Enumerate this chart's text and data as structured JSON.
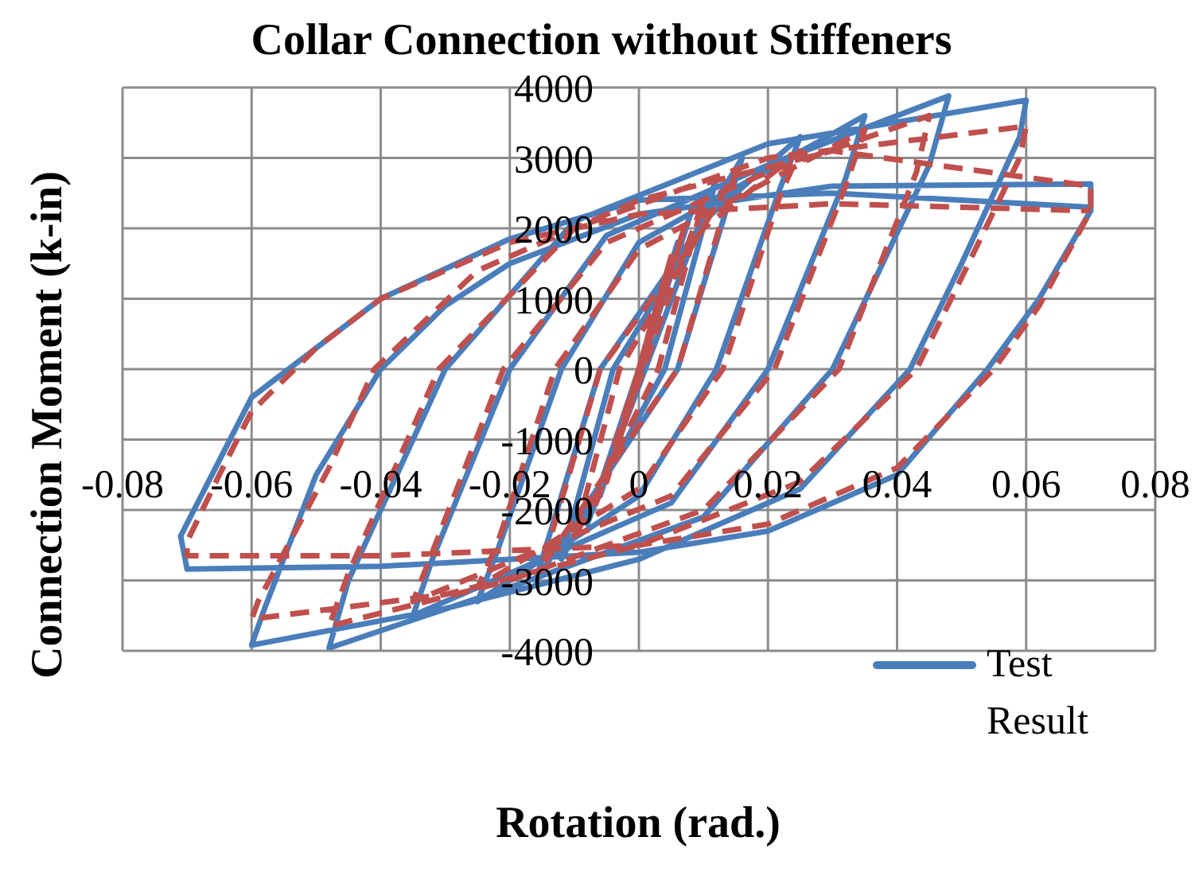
{
  "chart_data": {
    "type": "line",
    "title": "Collar Connection without Stiffeners",
    "xlabel": "Rotation (rad.)",
    "ylabel": "Connection Moment (k-in)",
    "xlim": [
      -0.08,
      0.08
    ],
    "xticks": [
      -0.08,
      -0.06,
      -0.04,
      -0.02,
      0,
      0.02,
      0.04,
      0.06,
      0.08
    ],
    "ylim": [
      -4000,
      4000
    ],
    "yticks": [
      -4000,
      -3000,
      -2000,
      -1000,
      0,
      1000,
      2000,
      3000,
      4000
    ],
    "grid": true,
    "legend": "bottom right",
    "marker": "none",
    "series": [
      {
        "name": "Test Result",
        "color": "#4a7ebb",
        "line_style": "solid",
        "x": [
          0,
          0.004,
          -0.004,
          0.006,
          -0.006,
          0.008,
          -0.008,
          0.012,
          0.004,
          -0.012,
          -0.004,
          0.016,
          0.006,
          -0.016,
          -0.006,
          0.01,
          0.025,
          0.022,
          0.012,
          0,
          -0.025,
          -0.022,
          -0.012,
          0,
          0.035,
          0.032,
          0.02,
          0.005,
          -0.035,
          -0.032,
          -0.02,
          -0.005,
          0.02,
          0.048,
          0.045,
          0.03,
          0.01,
          -0.02,
          -0.048,
          -0.045,
          -0.03,
          -0.01,
          0.02,
          0.06,
          0.059,
          0.05,
          0.042,
          0.025,
          0,
          -0.03,
          -0.06,
          -0.058,
          -0.05,
          -0.04,
          -0.03,
          -0.02,
          0,
          0.03,
          0.07,
          0.07,
          0.062,
          0.054,
          0.04,
          0.02,
          0,
          -0.04,
          -0.07,
          -0.071,
          -0.06,
          -0.04,
          -0.02,
          0,
          0.03,
          0.07
        ],
        "values": [
          0,
          1300,
          -1300,
          1800,
          -1800,
          2200,
          -2200,
          2700,
          0,
          -2700,
          0,
          3000,
          0,
          -3000,
          0,
          2100,
          3300,
          2600,
          0,
          -1800,
          -3300,
          -2600,
          0,
          1800,
          3600,
          2700,
          0,
          -1900,
          -3500,
          -2700,
          0,
          1900,
          2900,
          3880,
          2900,
          0,
          -2100,
          -3100,
          -3960,
          -3000,
          0,
          2100,
          3200,
          3820,
          3300,
          1500,
          0,
          -1700,
          -2700,
          -3400,
          -3920,
          -3400,
          -1500,
          0,
          900,
          1500,
          2200,
          2600,
          2630,
          2250,
          1000,
          0,
          -1500,
          -2300,
          -2600,
          -2800,
          -2840,
          -2370,
          -400,
          1000,
          1850,
          2400,
          2500,
          2300
        ]
      },
      {
        "color": "#c0504d",
        "line_style": "dashed",
        "x": [
          0,
          0.003,
          -0.003,
          0.005,
          -0.005,
          0.007,
          -0.007,
          0.01,
          0.003,
          -0.01,
          -0.003,
          0.015,
          0.006,
          -0.015,
          -0.006,
          0.01,
          0.025,
          0.022,
          0.013,
          0,
          -0.025,
          -0.022,
          -0.013,
          0,
          0.035,
          0.032,
          0.021,
          0.005,
          -0.035,
          -0.032,
          -0.021,
          -0.005,
          0.02,
          0.045,
          0.043,
          0.031,
          0.01,
          -0.02,
          -0.048,
          -0.045,
          -0.031,
          -0.01,
          0.02,
          0.06,
          0.059,
          0.05,
          0.043,
          0.025,
          0,
          -0.03,
          -0.06,
          -0.059,
          -0.048,
          -0.041,
          -0.025,
          0,
          0.03,
          0.07,
          0.07,
          0.062,
          0.055,
          0.04,
          0.02,
          0,
          -0.04,
          -0.07,
          -0.07,
          -0.065,
          -0.06,
          -0.05,
          -0.04,
          -0.02,
          0,
          0.03,
          0.07
        ],
        "values": [
          0,
          1000,
          -1000,
          1600,
          -1600,
          2000,
          -2000,
          2400,
          0,
          -2400,
          0,
          2800,
          0,
          -2800,
          0,
          2000,
          3100,
          2500,
          0,
          -1700,
          -3100,
          -2500,
          0,
          1700,
          3400,
          2600,
          0,
          -1800,
          -3300,
          -2600,
          0,
          1800,
          2800,
          3600,
          2800,
          0,
          -2000,
          -3000,
          -3650,
          -2900,
          0,
          2000,
          3000,
          3450,
          3000,
          1300,
          0,
          -1600,
          -2500,
          -3200,
          -3550,
          -3300,
          -1400,
          0,
          1400,
          2400,
          3100,
          2600,
          2250,
          900,
          0,
          -1400,
          -2200,
          -2500,
          -2650,
          -2650,
          -2450,
          -1500,
          -600,
          300,
          1000,
          1800,
          2200,
          2350,
          2250
        ]
      }
    ]
  }
}
